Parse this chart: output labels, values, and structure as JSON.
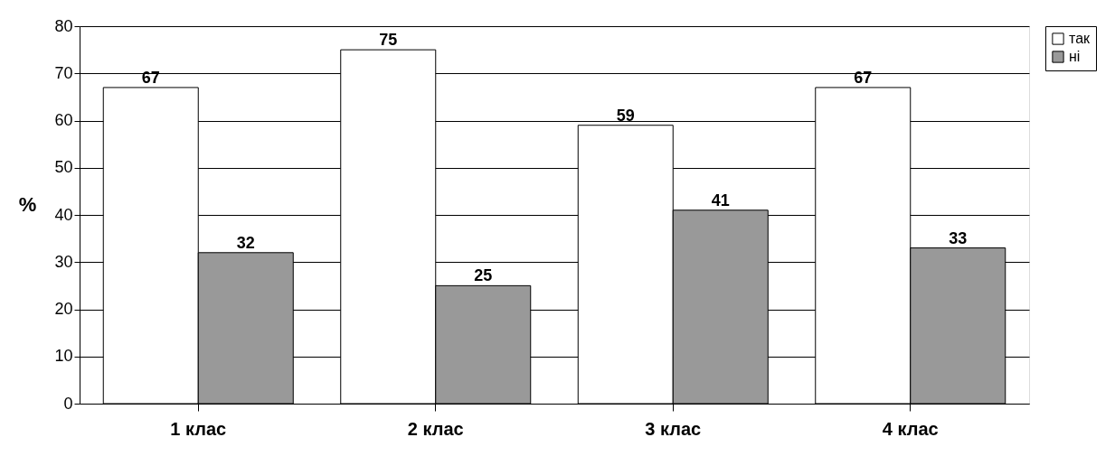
{
  "chart_data": {
    "type": "bar",
    "ylabel": "%",
    "categories": [
      "1 клас",
      "2 клас",
      "3 клас",
      "4 клас"
    ],
    "series": [
      {
        "name": "так",
        "color": "#ffffff",
        "values": [
          67,
          75,
          59,
          67
        ]
      },
      {
        "name": "ні",
        "color": "#999999",
        "values": [
          32,
          25,
          41,
          33
        ]
      }
    ],
    "ylim": [
      0,
      80
    ],
    "yticks": [
      0,
      10,
      20,
      30,
      40,
      50,
      60,
      70,
      80
    ],
    "grid": "y",
    "legend": "right",
    "data_labels": true
  }
}
